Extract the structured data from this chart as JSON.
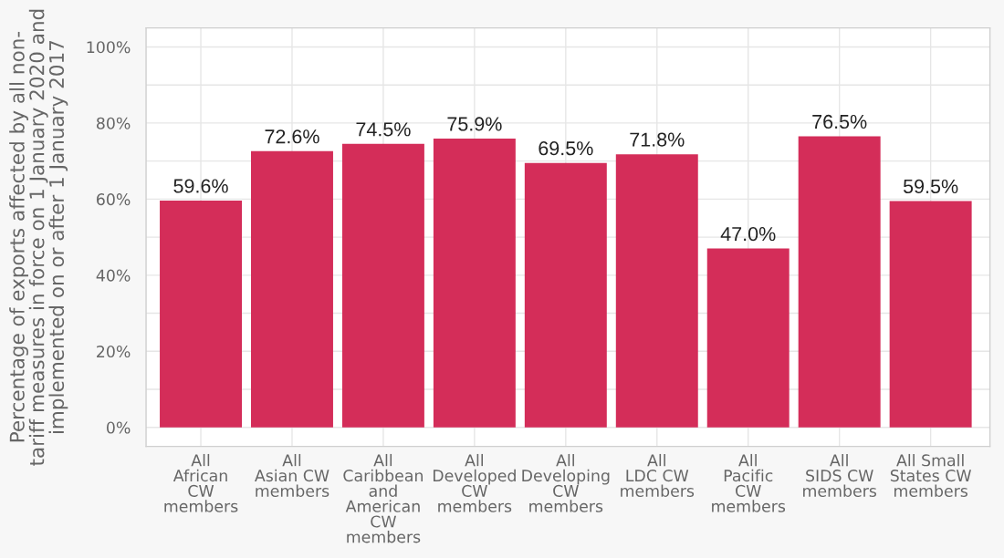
{
  "chart_data": {
    "type": "bar",
    "ylabel": "Percentage of exports affected by all non-\ntariff measures in force on 1 January 2020 and\nimplemented on or after 1 January 2017",
    "categories": [
      "All\nAfrican\nCW\nmembers",
      "All\nAsian CW\nmembers",
      "All\nCaribbean\nand\nAmerican\nCW\nmembers",
      "All\nDeveloped\nCW\nmembers",
      "All\nDeveloping\nCW\nmembers",
      "All\nLDC CW\nmembers",
      "All\nPacific\nCW\nmembers",
      "All\nSIDS CW\nmembers",
      "All Small\nStates CW\nmembers"
    ],
    "values": [
      59.6,
      72.6,
      74.5,
      75.9,
      69.5,
      71.8,
      47.0,
      76.5,
      59.5
    ],
    "value_labels": [
      "59.6%",
      "72.6%",
      "74.5%",
      "75.9%",
      "69.5%",
      "71.8%",
      "47.0%",
      "76.5%",
      "59.5%"
    ],
    "color": "#d42d59",
    "ylim": [
      -5,
      105
    ],
    "yticks": [
      {
        "value": 0,
        "label": "0%"
      },
      {
        "value": 10,
        "label": null
      },
      {
        "value": 20,
        "label": "20%"
      },
      {
        "value": 30,
        "label": null
      },
      {
        "value": 40,
        "label": "40%"
      },
      {
        "value": 50,
        "label": null
      },
      {
        "value": 60,
        "label": "60%"
      },
      {
        "value": 70,
        "label": null
      },
      {
        "value": 80,
        "label": "80%"
      },
      {
        "value": 90,
        "label": null
      },
      {
        "value": 100,
        "label": "100%"
      }
    ],
    "grid": true
  }
}
